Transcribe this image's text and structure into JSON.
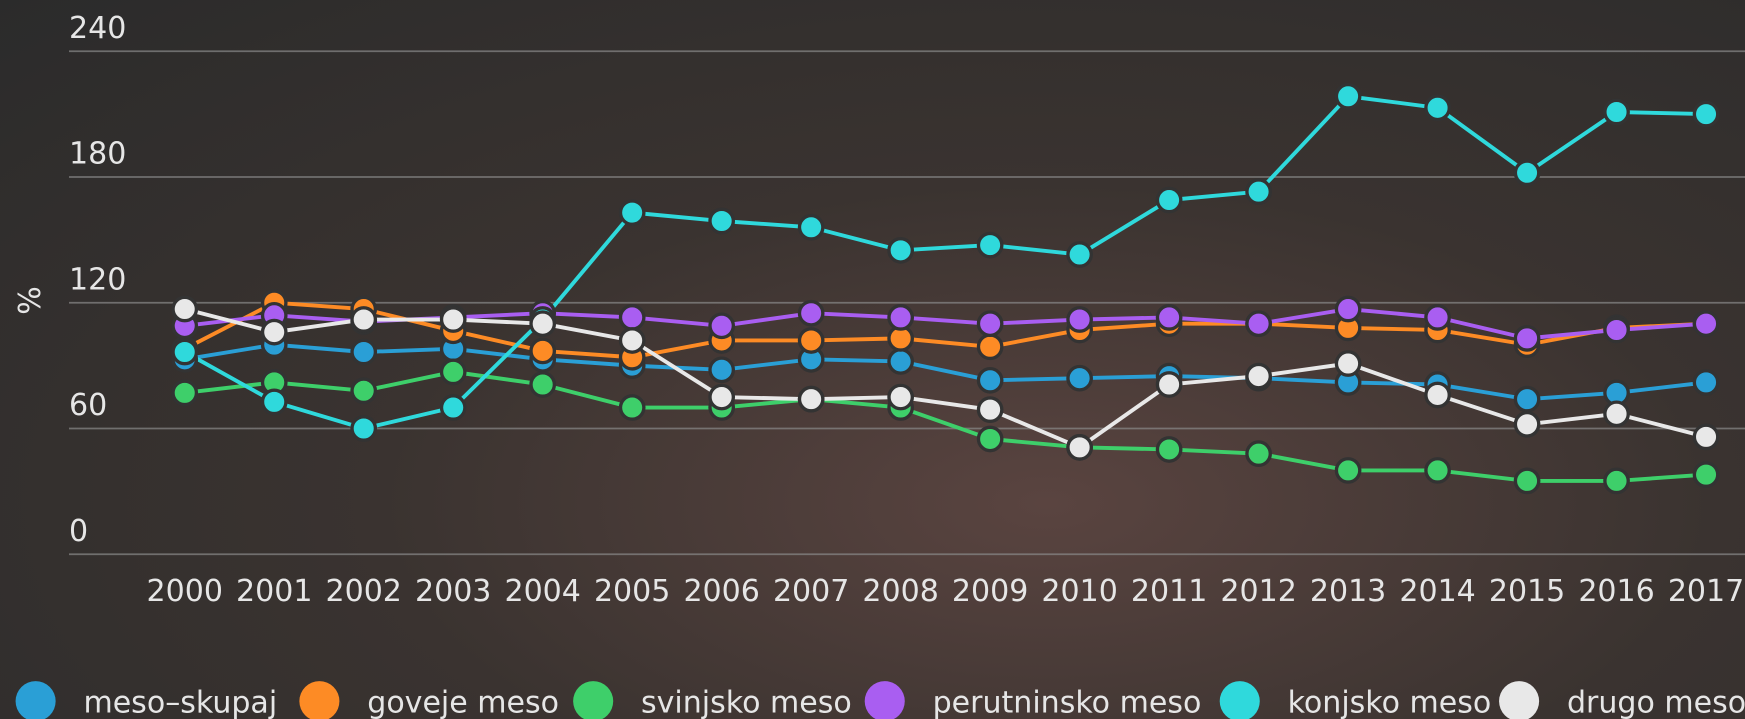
{
  "chart_data": {
    "type": "line",
    "y_label": "%",
    "categories": [
      "2000",
      "2001",
      "2002",
      "2003",
      "2004",
      "2005",
      "2006",
      "2007",
      "2008",
      "2009",
      "2010",
      "2011",
      "2012",
      "2013",
      "2014",
      "2015",
      "2016",
      "2017"
    ],
    "ylim": [
      0,
      240
    ],
    "yticks": [
      0,
      60,
      120,
      180,
      240
    ],
    "grid": true,
    "series": [
      {
        "name": "meso–skupaj",
        "color": "#2a9fd6",
        "values": [
          93,
          100,
          96.5,
          98,
          93,
          90,
          88,
          93,
          92,
          83,
          84,
          85,
          84,
          82,
          81,
          74,
          77,
          82
        ]
      },
      {
        "name": "goveje meso",
        "color": "#fd8b25",
        "values": [
          98,
          120,
          117,
          106.6,
          97,
          94,
          102,
          102,
          103,
          99,
          107,
          110,
          110,
          108,
          107,
          100,
          108,
          110
        ]
      },
      {
        "name": "svinjsko meso",
        "color": "#3ecf6a",
        "values": [
          77,
          82,
          78,
          87,
          81,
          70,
          70,
          74,
          70,
          55,
          51,
          50,
          48,
          40,
          40,
          35,
          35,
          38
        ]
      },
      {
        "name": "perutninsko meso",
        "color": "#a95ef1",
        "values": [
          109,
          114,
          111,
          113,
          115,
          113,
          109,
          115,
          113,
          110,
          112,
          113,
          110,
          117,
          113,
          103,
          107,
          110
        ]
      },
      {
        "name": "konjsko meso",
        "color": "#2fd9dc",
        "values": [
          96.5,
          72.7,
          60,
          70,
          112,
          163,
          159,
          156,
          145,
          147.5,
          143,
          169,
          173,
          218.5,
          213,
          182,
          211,
          210
        ]
      },
      {
        "name": "drugo meso",
        "color": "#e8e8e8",
        "values": [
          117,
          106,
          112,
          112,
          110,
          102,
          75,
          74,
          75,
          69,
          51,
          81,
          85,
          91,
          76,
          62,
          67,
          56
        ]
      }
    ]
  }
}
